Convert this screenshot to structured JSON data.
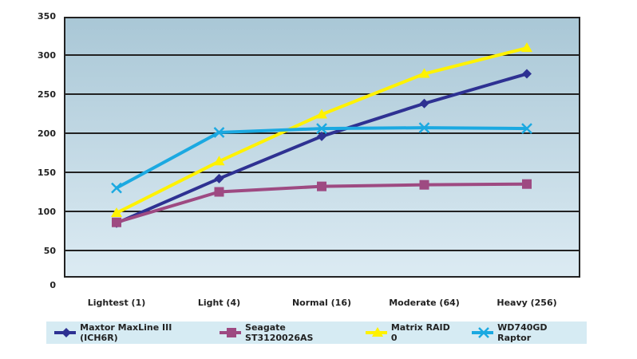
{
  "chart_data": {
    "type": "line",
    "categories": [
      "Lightest (1)",
      "Light (4)",
      "Normal (16)",
      "Moderate (64)",
      "Heavy (256)"
    ],
    "ylim": [
      0,
      350
    ],
    "yticks": [
      0,
      50,
      100,
      150,
      200,
      250,
      300,
      350
    ],
    "grid": true,
    "legend_placement": "bottom",
    "series": [
      {
        "name": "Maxtor MaxLine III (ICH6R)",
        "values": [
          85,
          142,
          196,
          238,
          276
        ],
        "color": "#2e3192",
        "marker": "diamond"
      },
      {
        "name": "Seagate ST3120026AS",
        "values": [
          86,
          125,
          132,
          134,
          135
        ],
        "color": "#9e4a82",
        "marker": "square"
      },
      {
        "name": "Matrix RAID 0",
        "values": [
          98,
          164,
          224,
          276,
          309
        ],
        "color": "#fff200",
        "marker": "triangle"
      },
      {
        "name": "WD740GD Raptor",
        "values": [
          130,
          201,
          206,
          207,
          206
        ],
        "color": "#1ba9e1",
        "marker": "x"
      }
    ]
  }
}
